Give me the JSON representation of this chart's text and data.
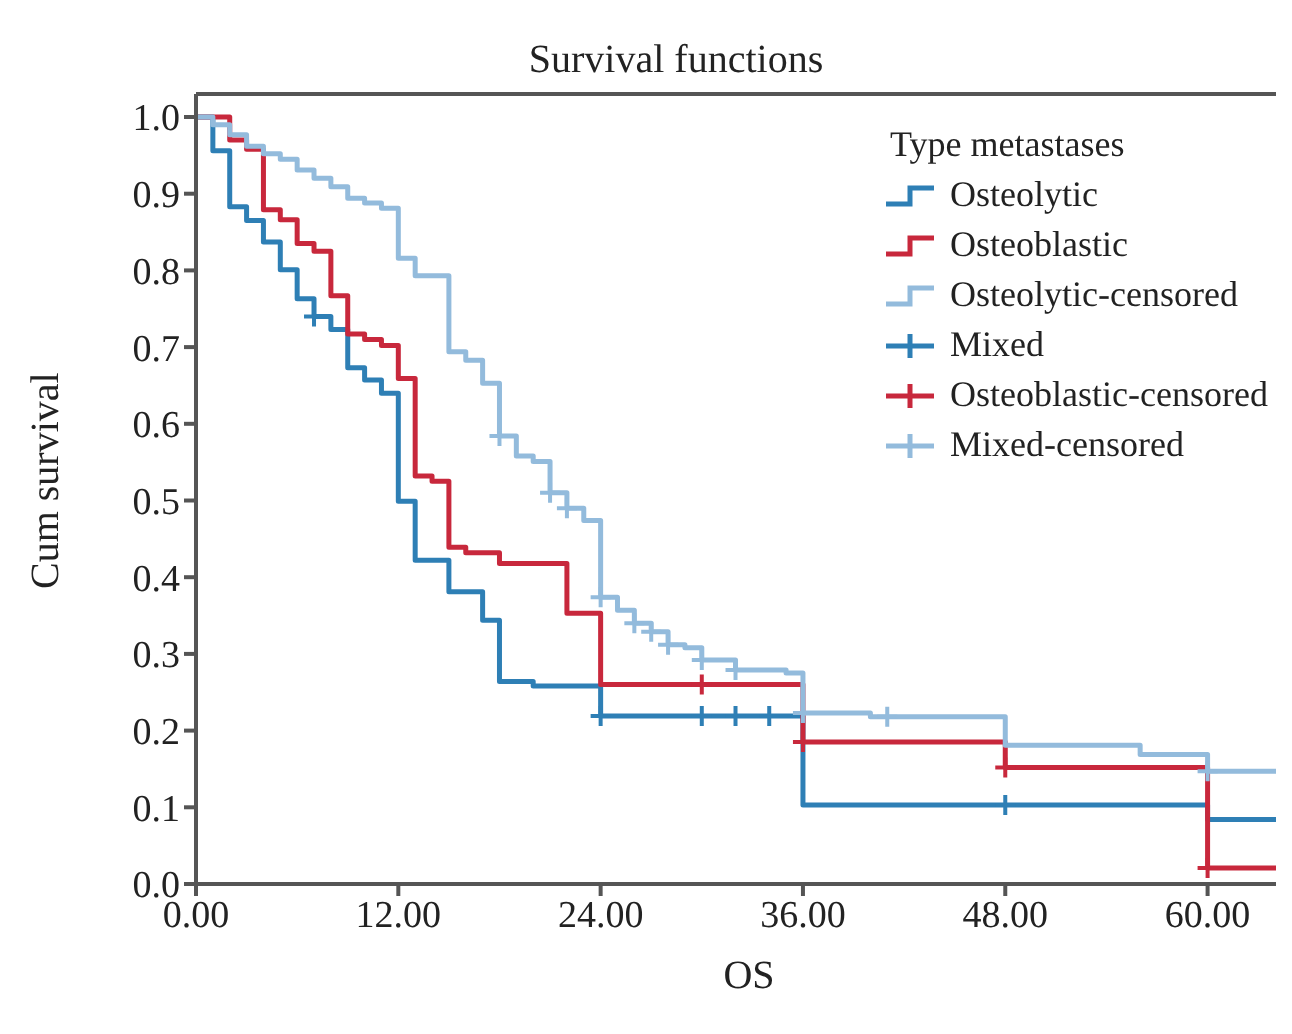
{
  "chart_data": {
    "type": "line",
    "title": "Survival functions",
    "xlabel": "OS",
    "ylabel": "Cum survival",
    "legend_title": "Type metastases",
    "legend": "top right",
    "grid": false,
    "xlim": [
      0,
      65.6
    ],
    "xticks": [
      {
        "value": 0,
        "label": "0.00"
      },
      {
        "value": 12,
        "label": "12.00"
      },
      {
        "value": 24,
        "label": "24.00"
      },
      {
        "value": 36,
        "label": "36.00"
      },
      {
        "value": 48,
        "label": "48.00"
      },
      {
        "value": 60,
        "label": "60.00"
      }
    ],
    "ylim": [
      0,
      1.03
    ],
    "yticks": [
      {
        "value": 0,
        "label": "0.0"
      },
      {
        "value": 0.1,
        "label": "0.1"
      },
      {
        "value": 0.2,
        "label": "0.2"
      },
      {
        "value": 0.3,
        "label": "0.3"
      },
      {
        "value": 0.4,
        "label": "0.4"
      },
      {
        "value": 0.5,
        "label": "0.5"
      },
      {
        "value": 0.6,
        "label": "0.6"
      },
      {
        "value": 0.7,
        "label": "0.7"
      },
      {
        "value": 0.8,
        "label": "0.8"
      },
      {
        "value": 0.9,
        "label": "0.9"
      },
      {
        "value": 1,
        "label": "1.0"
      }
    ],
    "series": [
      {
        "name": "Osteolytic",
        "type": "step",
        "color": "#2e7fb5",
        "x": [
          0,
          1,
          2,
          3,
          4,
          5,
          6,
          7,
          8,
          9,
          10,
          11,
          12,
          13,
          15,
          17,
          18,
          20,
          24,
          36,
          60,
          65.6
        ],
        "values": [
          1,
          0.956,
          0.883,
          0.865,
          0.837,
          0.801,
          0.763,
          0.74,
          0.723,
          0.673,
          0.657,
          0.64,
          0.499,
          0.422,
          0.381,
          0.344,
          0.264,
          0.258,
          0.219,
          0.103,
          0.084,
          0.084
        ]
      },
      {
        "name": "Osteoblastic",
        "type": "step",
        "color": "#c8283c",
        "x": [
          0,
          2,
          3,
          4,
          5,
          6,
          7,
          8,
          9,
          10,
          11,
          12,
          13,
          14,
          15,
          16,
          18,
          22,
          24,
          36,
          48,
          60,
          65.6
        ],
        "values": [
          1,
          0.97,
          0.958,
          0.879,
          0.866,
          0.835,
          0.825,
          0.767,
          0.717,
          0.71,
          0.702,
          0.659,
          0.532,
          0.525,
          0.439,
          0.432,
          0.418,
          0.353,
          0.26,
          0.185,
          0.152,
          0.021,
          0.021
        ]
      },
      {
        "name": "Osteolytic-censored",
        "type": "step",
        "color": "#93bbdc",
        "x": [
          0,
          1,
          2,
          3,
          4,
          5,
          6,
          7,
          8,
          9,
          10,
          11,
          12,
          13,
          15,
          16,
          17,
          18,
          19,
          20,
          21,
          22,
          23,
          24,
          25,
          26,
          27,
          28,
          29,
          30,
          32,
          35,
          36,
          40,
          48,
          56,
          60,
          65.6
        ],
        "values": [
          1,
          0.99,
          0.977,
          0.962,
          0.952,
          0.945,
          0.931,
          0.92,
          0.909,
          0.894,
          0.888,
          0.881,
          0.816,
          0.793,
          0.694,
          0.683,
          0.653,
          0.584,
          0.558,
          0.551,
          0.51,
          0.49,
          0.474,
          0.374,
          0.357,
          0.34,
          0.329,
          0.312,
          0.308,
          0.292,
          0.279,
          0.275,
          0.223,
          0.218,
          0.181,
          0.169,
          0.147,
          0.147
        ]
      },
      {
        "name": "Mixed",
        "type": "scatter",
        "marker": "cross",
        "color": "#2e7fb5",
        "x": [
          7,
          24,
          30,
          32,
          34,
          48
        ],
        "values": [
          0.74,
          0.219,
          0.219,
          0.219,
          0.219,
          0.103
        ]
      },
      {
        "name": "Osteoblastic-censored",
        "type": "scatter",
        "marker": "cross",
        "color": "#c8283c",
        "x": [
          30,
          36,
          48,
          60
        ],
        "values": [
          0.26,
          0.185,
          0.152,
          0.021
        ]
      },
      {
        "name": "Mixed-censored",
        "type": "scatter",
        "marker": "cross",
        "color": "#93bbdc",
        "x": [
          18,
          21,
          22,
          24,
          26,
          27,
          28,
          30,
          32,
          36,
          41,
          60
        ],
        "values": [
          0.584,
          0.51,
          0.49,
          0.374,
          0.34,
          0.329,
          0.312,
          0.292,
          0.279,
          0.223,
          0.218,
          0.147
        ]
      }
    ]
  }
}
